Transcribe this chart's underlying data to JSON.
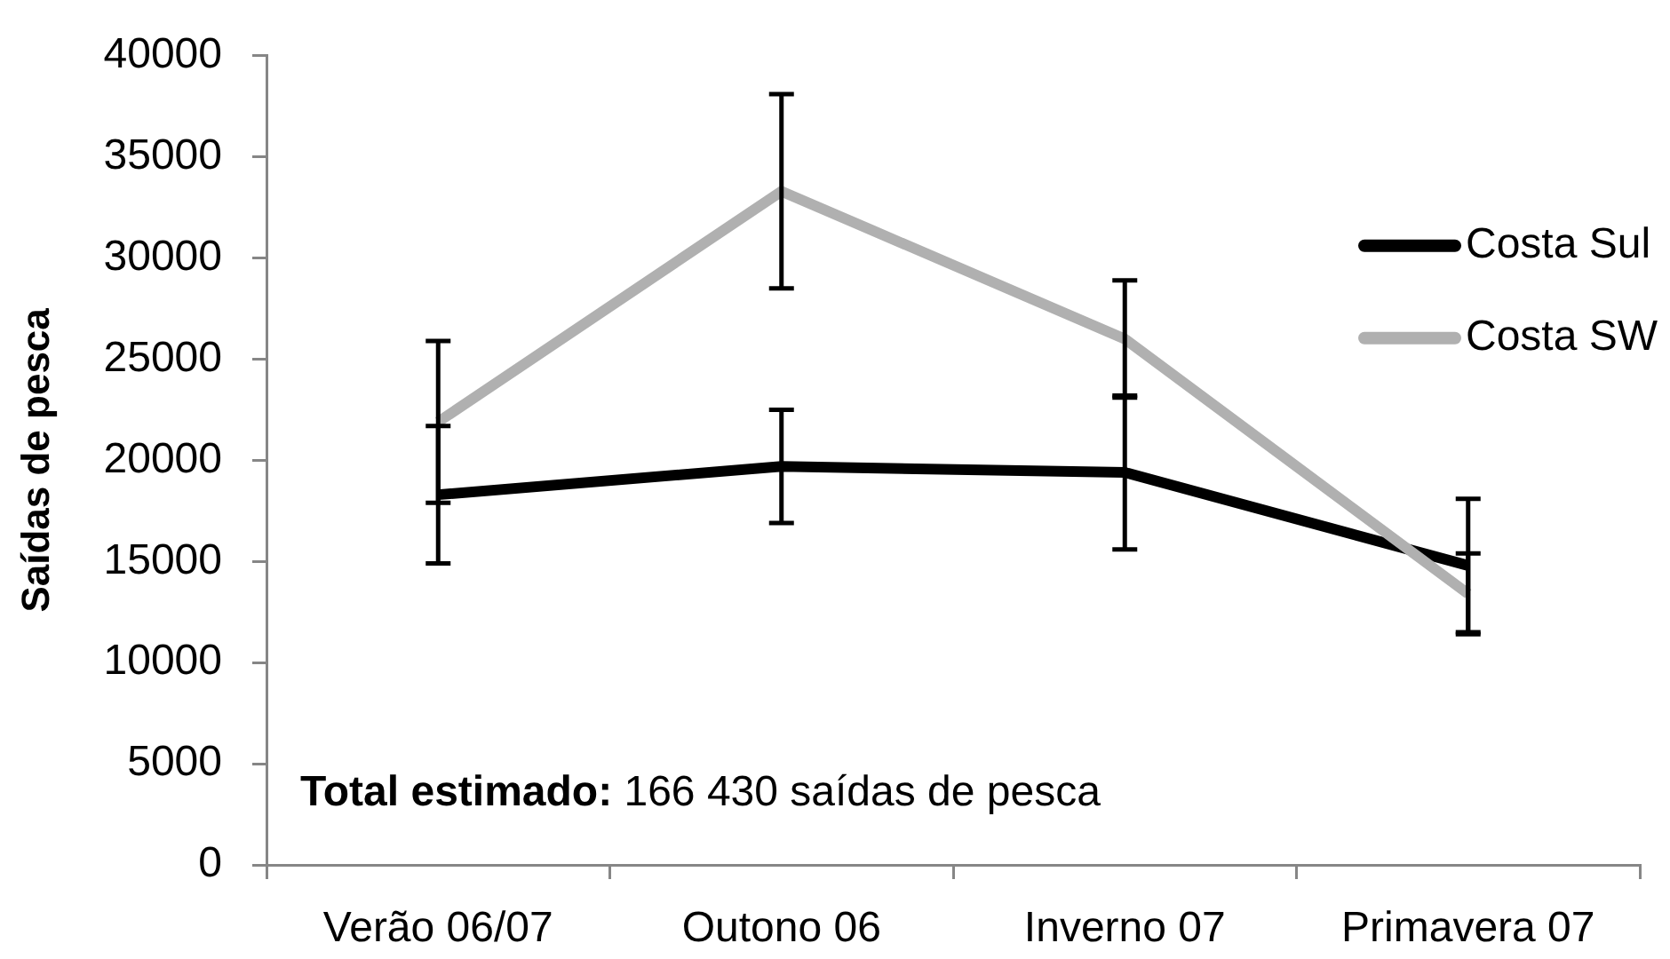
{
  "chart_data": {
    "type": "line",
    "ylabel": "Saídas de pesca",
    "categories": [
      "Verão 06/07",
      "Outono 06",
      "Inverno 07",
      "Primavera 07"
    ],
    "series": [
      {
        "name": "Costa Sul",
        "color": "#000000",
        "values": [
          18300,
          19700,
          19400,
          14800
        ],
        "errors": [
          3400,
          2800,
          3800,
          3300
        ]
      },
      {
        "name": "Costa SW",
        "color": "#b0b0b0",
        "values": [
          21900,
          33300,
          26000,
          13400
        ],
        "errors": [
          4000,
          4800,
          2900,
          2000
        ]
      }
    ],
    "ylim": [
      0,
      40000
    ],
    "yticks": [
      0,
      5000,
      10000,
      15000,
      20000,
      25000,
      30000,
      35000,
      40000
    ],
    "legend": "right",
    "annotations": [
      "Total estimado: 166 430 saídas de pesca"
    ]
  }
}
